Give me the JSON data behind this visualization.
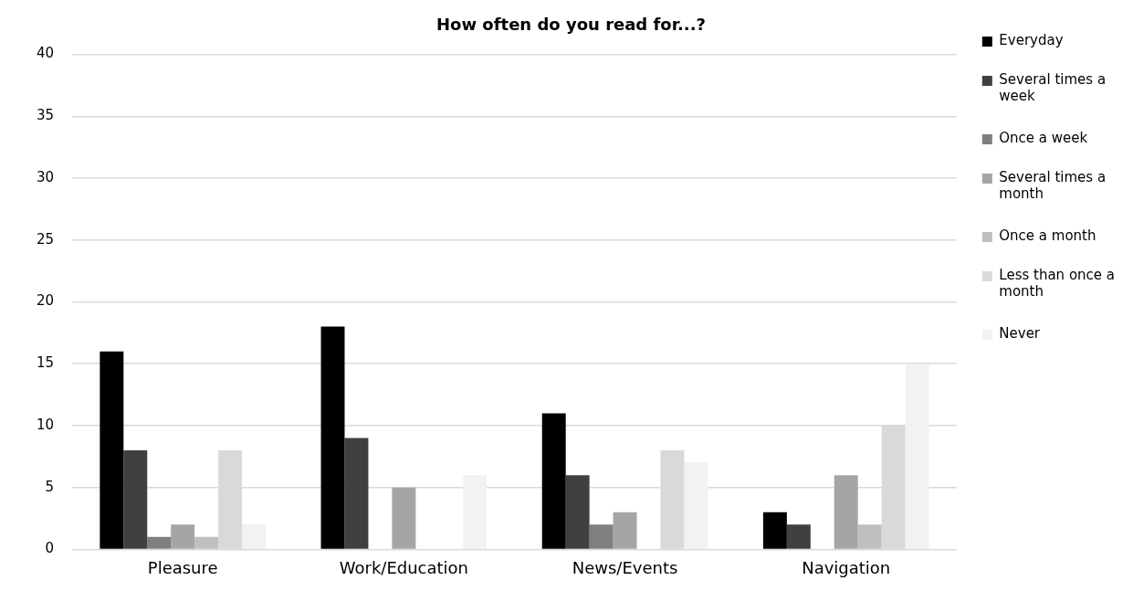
{
  "chart_data": {
    "type": "bar",
    "title": "How often do you read for...?",
    "categories": [
      "Pleasure",
      "Work/Education",
      "News/Events",
      "Navigation"
    ],
    "series": [
      {
        "name": "Everyday",
        "color": "#000000",
        "values": [
          16,
          18,
          11,
          3
        ]
      },
      {
        "name": "Several times a week",
        "color": "#404040",
        "values": [
          8,
          9,
          6,
          2
        ]
      },
      {
        "name": "Once a week",
        "color": "#7f7f7f",
        "values": [
          1,
          0,
          2,
          0
        ]
      },
      {
        "name": "Several times a month",
        "color": "#a5a5a5",
        "values": [
          2,
          5,
          3,
          6
        ]
      },
      {
        "name": "Once a month",
        "color": "#bfbfbf",
        "values": [
          1,
          0,
          0,
          2
        ]
      },
      {
        "name": "Less than once a month",
        "color": "#d9d9d9",
        "values": [
          8,
          0,
          8,
          10
        ]
      },
      {
        "name": "Never",
        "color": "#f2f2f2",
        "values": [
          2,
          6,
          7,
          15
        ]
      }
    ],
    "ylim": [
      0,
      40
    ],
    "yticks": [
      0,
      5,
      10,
      15,
      20,
      25,
      30,
      35,
      40
    ],
    "grid": "y",
    "legend": "right"
  }
}
